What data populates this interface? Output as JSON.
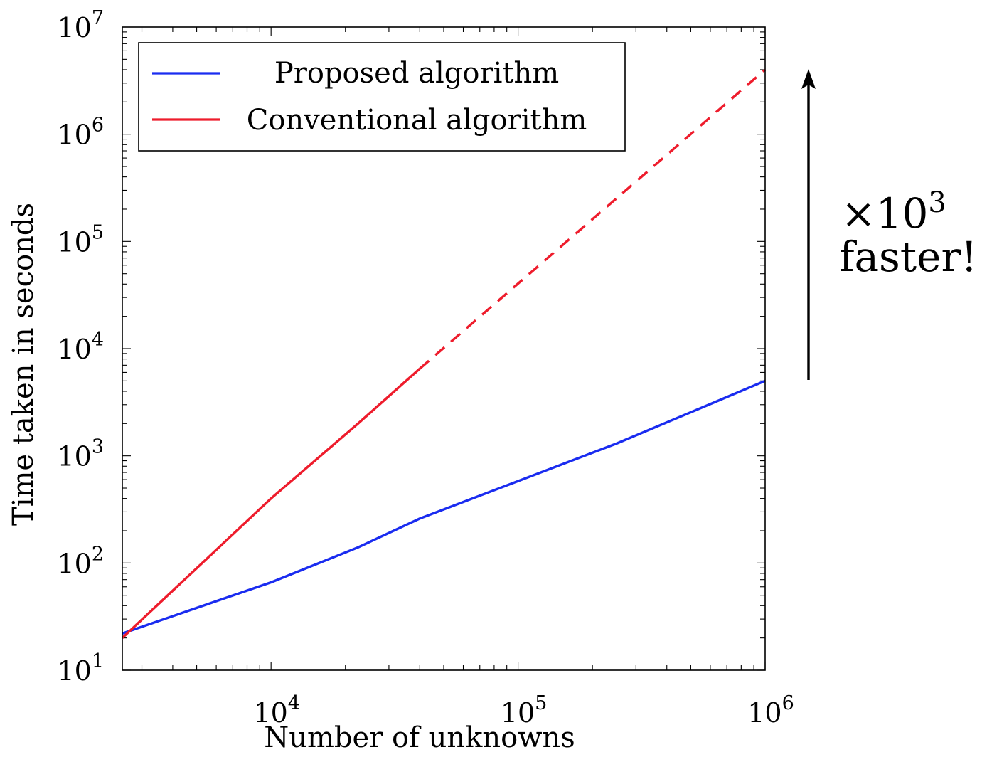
{
  "chart_data": {
    "type": "line",
    "xscale": "log",
    "yscale": "log",
    "xlim": [
      2500,
      1000000
    ],
    "ylim": [
      10,
      10000000
    ],
    "xlabel": "Number of unknowns",
    "ylabel": "Time taken in seconds",
    "x_ticks": [
      {
        "value": 10000,
        "base": "10",
        "exp": "4"
      },
      {
        "value": 100000,
        "base": "10",
        "exp": "5"
      },
      {
        "value": 1000000,
        "base": "10",
        "exp": "6"
      }
    ],
    "y_ticks": [
      {
        "value": 10,
        "base": "10",
        "exp": "1"
      },
      {
        "value": 100,
        "base": "10",
        "exp": "2"
      },
      {
        "value": 1000,
        "base": "10",
        "exp": "3"
      },
      {
        "value": 10000,
        "base": "10",
        "exp": "4"
      },
      {
        "value": 100000,
        "base": "10",
        "exp": "5"
      },
      {
        "value": 1000000,
        "base": "10",
        "exp": "6"
      },
      {
        "value": 10000000,
        "base": "10",
        "exp": "7"
      }
    ],
    "legend_position": "top-left",
    "series": [
      {
        "name": "Proposed algorithm",
        "color": "#1a2cf0",
        "style": "solid",
        "points": [
          [
            2500,
            22
          ],
          [
            10000,
            66
          ],
          [
            22500,
            140
          ],
          [
            40000,
            260
          ],
          [
            250000,
            1300
          ],
          [
            1000000,
            5000
          ]
        ]
      },
      {
        "name": "Conventional algorithm",
        "color": "#ee1c2c",
        "style": "solid",
        "points": [
          [
            2500,
            20
          ],
          [
            10000,
            400
          ],
          [
            22500,
            2000
          ],
          [
            40000,
            6500
          ]
        ]
      },
      {
        "name": "",
        "color": "#ee1c2c",
        "style": "dashed",
        "points": [
          [
            40000,
            6500
          ],
          [
            1000000,
            4000000
          ]
        ]
      }
    ],
    "annotation": {
      "line1_prefix": "×10",
      "line1_exp": "3",
      "line2": "faster!"
    }
  }
}
